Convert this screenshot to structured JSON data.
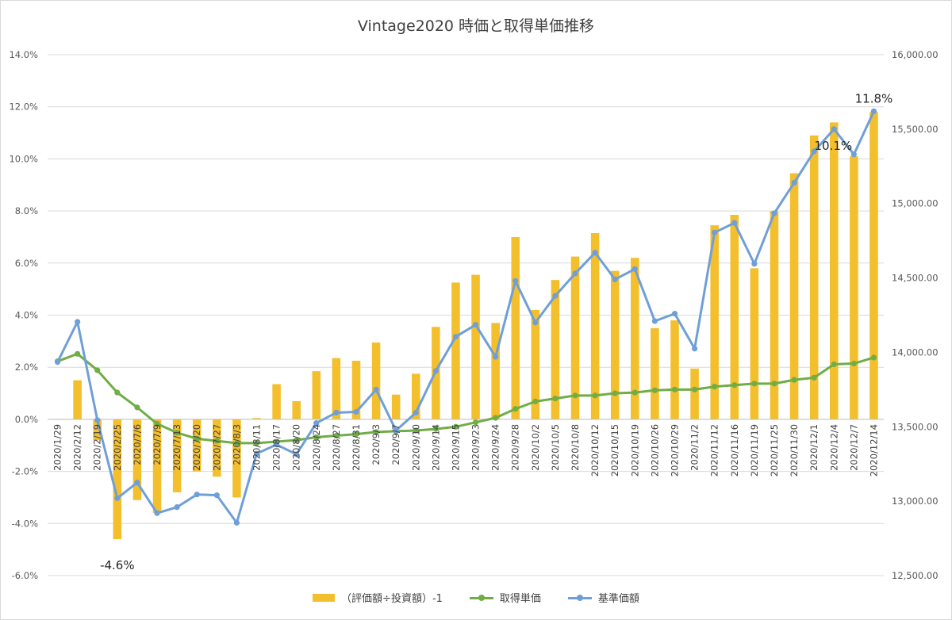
{
  "chart_data": {
    "type": "bar+line",
    "title": "Vintage2020 時価と取得単価推移",
    "categories": [
      "2020/1/29",
      "2020/2/12",
      "2020/2/19",
      "2020/2/25",
      "2020/7/6",
      "2020/7/9",
      "2020/7/13",
      "2020/7/20",
      "2020/7/27",
      "2020/8/3",
      "2020/8/11",
      "2020/8/17",
      "2020/8/20",
      "2020/8/24",
      "2020/8/27",
      "2020/8/31",
      "2020/9/3",
      "2020/9/7",
      "2020/9/10",
      "2020/9/14",
      "2020/9/15",
      "2020/9/23",
      "2020/9/24",
      "2020/9/28",
      "2020/10/2",
      "2020/10/5",
      "2020/10/8",
      "2020/10/12",
      "2020/10/15",
      "2020/10/19",
      "2020/10/26",
      "2020/10/29",
      "2020/11/2",
      "2020/11/12",
      "2020/11/16",
      "2020/11/19",
      "2020/11/25",
      "2020/11/30",
      "2020/12/1",
      "2020/12/4",
      "2020/12/7",
      "2020/12/14"
    ],
    "series": [
      {
        "name": "（評価額÷投資額）-1",
        "type": "bar",
        "axis": "left",
        "color": "#f3bf2c",
        "values": [
          0.0,
          1.5,
          -0.8,
          -4.6,
          -3.1,
          -3.6,
          -2.8,
          -2.0,
          -2.2,
          -3.0,
          0.05,
          1.35,
          0.7,
          1.85,
          2.35,
          2.25,
          2.95,
          0.95,
          1.75,
          3.55,
          5.25,
          5.55,
          3.7,
          7.0,
          4.2,
          5.35,
          6.25,
          7.15,
          5.7,
          6.2,
          3.5,
          3.8,
          1.95,
          7.45,
          7.85,
          5.8,
          8.0,
          9.45,
          10.9,
          11.4,
          10.1,
          11.8
        ]
      },
      {
        "name": "取得単価",
        "type": "line",
        "axis": "right",
        "color": "#70ad47",
        "values": [
          13940,
          13990,
          13880,
          13730,
          13630,
          13520,
          13460,
          13420,
          13405,
          13390,
          13390,
          13400,
          13410,
          13430,
          13440,
          13450,
          13465,
          13470,
          13475,
          13485,
          13500,
          13530,
          13560,
          13620,
          13670,
          13690,
          13710,
          13710,
          13725,
          13730,
          13745,
          13750,
          13750,
          13770,
          13780,
          13790,
          13790,
          13815,
          13830,
          13920,
          13925,
          13965
        ]
      },
      {
        "name": "基準価額",
        "type": "line",
        "axis": "right",
        "color": "#6f9fd8",
        "values": [
          13935,
          14205,
          13545,
          13020,
          13125,
          12920,
          12960,
          13045,
          13040,
          12855,
          13320,
          13380,
          13315,
          13525,
          13595,
          13600,
          13750,
          13475,
          13595,
          13875,
          14105,
          14185,
          13970,
          14480,
          14200,
          14380,
          14530,
          14670,
          14490,
          14560,
          14210,
          14260,
          14025,
          14805,
          14870,
          14595,
          14935,
          15140,
          15350,
          15500,
          15330,
          15620
        ]
      }
    ],
    "left_axis": {
      "ylim": [
        -6.0,
        14.0
      ],
      "tick_labels": [
        "-6.0%",
        "-4.0%",
        "-2.0%",
        "0.0%",
        "2.0%",
        "4.0%",
        "6.0%",
        "8.0%",
        "10.0%",
        "12.0%",
        "14.0%"
      ]
    },
    "right_axis": {
      "ylim": [
        12500,
        16000
      ],
      "tick_labels": [
        "12,500.00",
        "13,000.00",
        "13,500.00",
        "14,000.00",
        "14,500.00",
        "15,000.00",
        "15,500.00",
        "16,000.00"
      ]
    },
    "annotations": [
      {
        "text": "-4.6%",
        "category": "2020/2/25"
      },
      {
        "text": "10.1%",
        "category": "2020/12/7"
      },
      {
        "text": "11.8%",
        "category": "2020/12/14"
      }
    ],
    "grid": true,
    "legend_position": "bottom"
  }
}
